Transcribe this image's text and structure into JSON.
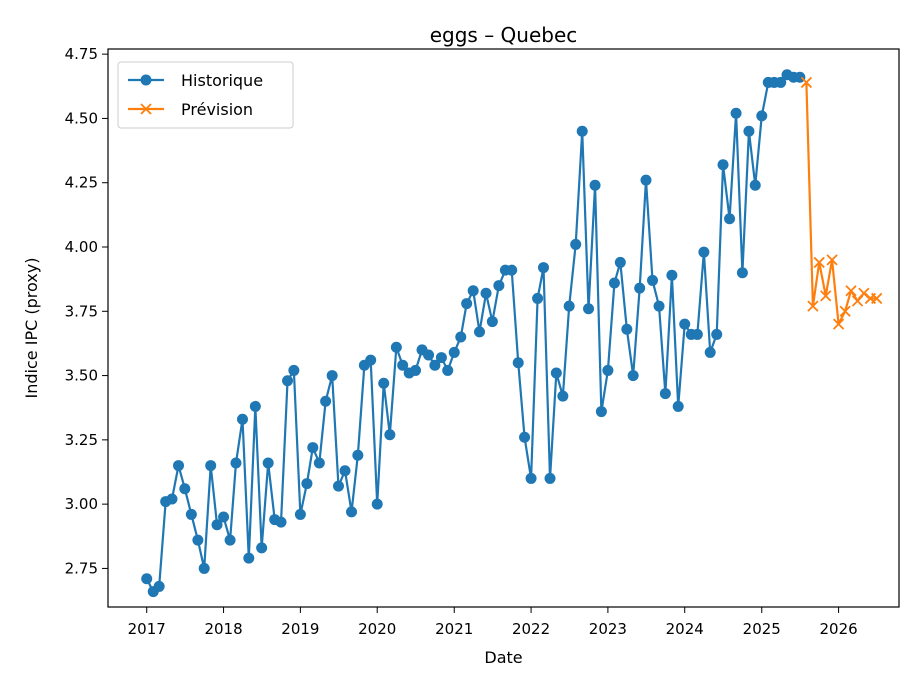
{
  "chart_data": {
    "type": "line",
    "title": "eggs – Quebec",
    "xlabel": "Date",
    "ylabel": "Indice IPC (proxy)",
    "xlim": [
      "2016-07-01",
      "2026-10-15"
    ],
    "ylim": [
      2.6,
      4.77
    ],
    "x_ticks": [
      "2017",
      "2018",
      "2019",
      "2020",
      "2021",
      "2022",
      "2023",
      "2024",
      "2025",
      "2026"
    ],
    "y_ticks": [
      "2.75",
      "3.00",
      "3.25",
      "3.50",
      "3.75",
      "4.00",
      "4.25",
      "4.50",
      "4.75"
    ],
    "legend_position": "top-left",
    "grid": false,
    "series": [
      {
        "name": "Historique",
        "color": "#1f77b4",
        "marker": "circle",
        "x": [
          "2017-01",
          "2017-02",
          "2017-03",
          "2017-04",
          "2017-05",
          "2017-06",
          "2017-07",
          "2017-08",
          "2017-09",
          "2017-10",
          "2017-11",
          "2017-12",
          "2018-01",
          "2018-02",
          "2018-03",
          "2018-04",
          "2018-05",
          "2018-06",
          "2018-07",
          "2018-08",
          "2018-09",
          "2018-10",
          "2018-11",
          "2018-12",
          "2019-01",
          "2019-02",
          "2019-03",
          "2019-04",
          "2019-05",
          "2019-06",
          "2019-07",
          "2019-08",
          "2019-09",
          "2019-10",
          "2019-11",
          "2019-12",
          "2020-01",
          "2020-02",
          "2020-03",
          "2020-04",
          "2020-05",
          "2020-06",
          "2020-07",
          "2020-08",
          "2020-09",
          "2020-10",
          "2020-11",
          "2020-12",
          "2021-01",
          "2021-02",
          "2021-03",
          "2021-04",
          "2021-05",
          "2021-06",
          "2021-07",
          "2021-08",
          "2021-09",
          "2021-10",
          "2021-11",
          "2021-12",
          "2022-01",
          "2022-02",
          "2022-03",
          "2022-04",
          "2022-05",
          "2022-06",
          "2022-07",
          "2022-08",
          "2022-09",
          "2022-10",
          "2022-11",
          "2022-12",
          "2023-01",
          "2023-02",
          "2023-03",
          "2023-04",
          "2023-05",
          "2023-06",
          "2023-07",
          "2023-08",
          "2023-09",
          "2023-10",
          "2023-11",
          "2023-12",
          "2024-01",
          "2024-02",
          "2024-03",
          "2024-04",
          "2024-05",
          "2024-06",
          "2024-07",
          "2024-08",
          "2024-09",
          "2024-10",
          "2024-11",
          "2024-12",
          "2025-01",
          "2025-02",
          "2025-03",
          "2025-04",
          "2025-05",
          "2025-06",
          "2025-07"
        ],
        "values": [
          2.71,
          2.66,
          2.68,
          3.01,
          3.02,
          3.15,
          3.06,
          2.96,
          2.86,
          2.75,
          3.15,
          2.92,
          2.95,
          2.86,
          3.16,
          3.33,
          2.79,
          3.38,
          2.83,
          3.16,
          2.94,
          2.93,
          3.48,
          3.52,
          2.96,
          3.08,
          3.22,
          3.16,
          3.4,
          3.5,
          3.07,
          3.13,
          2.97,
          3.19,
          3.54,
          3.56,
          3.0,
          3.47,
          3.27,
          3.61,
          3.54,
          3.51,
          3.52,
          3.6,
          3.58,
          3.54,
          3.57,
          3.52,
          3.59,
          3.65,
          3.78,
          3.83,
          3.67,
          3.82,
          3.71,
          3.85,
          3.91,
          3.91,
          3.55,
          3.26,
          3.1,
          3.8,
          3.92,
          3.1,
          3.51,
          3.42,
          3.77,
          4.01,
          4.45,
          3.76,
          4.24,
          3.36,
          3.52,
          3.86,
          3.94,
          3.68,
          3.5,
          3.84,
          4.26,
          3.87,
          3.77,
          3.43,
          3.89,
          3.38,
          3.7,
          3.66,
          3.66,
          3.98,
          3.59,
          3.66,
          4.32,
          4.11,
          4.52,
          3.9,
          4.45,
          4.24,
          4.51,
          4.64,
          4.64,
          4.64,
          4.67,
          4.66,
          4.66
        ]
      },
      {
        "name": "Prévision",
        "color": "#ff7f0e",
        "marker": "x",
        "x": [
          "2025-08",
          "2025-09",
          "2025-10",
          "2025-11",
          "2025-12",
          "2026-01",
          "2026-02",
          "2026-03",
          "2026-04",
          "2026-05",
          "2026-06",
          "2026-07"
        ],
        "values": [
          4.64,
          3.77,
          3.94,
          3.81,
          3.95,
          3.7,
          3.75,
          3.83,
          3.79,
          3.82,
          3.8,
          3.8
        ]
      }
    ]
  }
}
